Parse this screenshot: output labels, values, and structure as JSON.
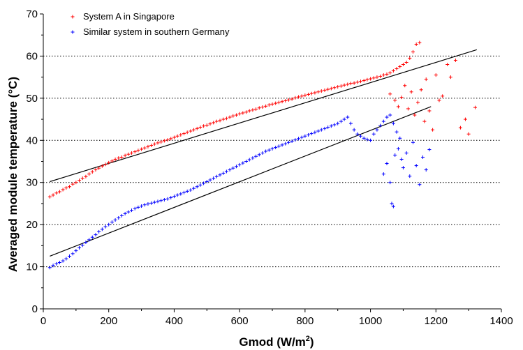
{
  "chart_data": {
    "type": "scatter",
    "xlabel": "Gmod (W/m",
    "xlabel_sup": "2",
    "xlabel_end": ")",
    "ylabel": "Averaged module temperature (°C)",
    "xlim": [
      0,
      1400
    ],
    "ylim": [
      0,
      70
    ],
    "x_ticks": [
      "0",
      "200",
      "400",
      "600",
      "800",
      "1000",
      "1200",
      "1400"
    ],
    "y_ticks": [
      "0",
      "10",
      "20",
      "30",
      "40",
      "50",
      "60",
      "70"
    ],
    "grid": "horizontal dotted",
    "legend_position": "top-left",
    "series": [
      {
        "name": "System A in Singapore",
        "color": "#ff0000",
        "marker": "plus",
        "fit_line": {
          "x": [
            20,
            1325
          ],
          "y": [
            30.2,
            61.5
          ]
        },
        "points": [
          [
            20,
            26.6
          ],
          [
            30,
            27.0
          ],
          [
            40,
            27.5
          ],
          [
            50,
            27.8
          ],
          [
            60,
            28.3
          ],
          [
            70,
            28.7
          ],
          [
            80,
            29.0
          ],
          [
            90,
            29.6
          ],
          [
            100,
            30.0
          ],
          [
            110,
            30.5
          ],
          [
            120,
            31.0
          ],
          [
            130,
            31.4
          ],
          [
            140,
            32.0
          ],
          [
            150,
            32.5
          ],
          [
            160,
            33.0
          ],
          [
            170,
            33.4
          ],
          [
            180,
            33.9
          ],
          [
            190,
            34.3
          ],
          [
            200,
            34.7
          ],
          [
            210,
            35.1
          ],
          [
            220,
            35.5
          ],
          [
            230,
            35.8
          ],
          [
            240,
            36.0
          ],
          [
            250,
            36.4
          ],
          [
            260,
            36.7
          ],
          [
            270,
            37.0
          ],
          [
            280,
            37.3
          ],
          [
            290,
            37.6
          ],
          [
            300,
            37.9
          ],
          [
            310,
            38.2
          ],
          [
            320,
            38.5
          ],
          [
            330,
            38.8
          ],
          [
            340,
            39.1
          ],
          [
            350,
            39.4
          ],
          [
            360,
            39.6
          ],
          [
            370,
            39.9
          ],
          [
            380,
            40.1
          ],
          [
            390,
            40.4
          ],
          [
            400,
            40.7
          ],
          [
            410,
            41.0
          ],
          [
            420,
            41.3
          ],
          [
            430,
            41.6
          ],
          [
            440,
            41.9
          ],
          [
            450,
            42.2
          ],
          [
            460,
            42.5
          ],
          [
            470,
            42.8
          ],
          [
            480,
            43.1
          ],
          [
            490,
            43.4
          ],
          [
            500,
            43.6
          ],
          [
            510,
            43.9
          ],
          [
            520,
            44.2
          ],
          [
            530,
            44.5
          ],
          [
            540,
            44.7
          ],
          [
            550,
            45.0
          ],
          [
            560,
            45.2
          ],
          [
            570,
            45.5
          ],
          [
            580,
            45.8
          ],
          [
            590,
            46.0
          ],
          [
            600,
            46.3
          ],
          [
            610,
            46.5
          ],
          [
            620,
            46.7
          ],
          [
            630,
            47.0
          ],
          [
            640,
            47.2
          ],
          [
            650,
            47.4
          ],
          [
            660,
            47.7
          ],
          [
            670,
            47.9
          ],
          [
            680,
            48.1
          ],
          [
            690,
            48.4
          ],
          [
            700,
            48.6
          ],
          [
            710,
            48.8
          ],
          [
            720,
            49.0
          ],
          [
            730,
            49.2
          ],
          [
            740,
            49.4
          ],
          [
            750,
            49.6
          ],
          [
            760,
            49.8
          ],
          [
            770,
            50.1
          ],
          [
            780,
            50.3
          ],
          [
            790,
            50.5
          ],
          [
            800,
            50.7
          ],
          [
            810,
            50.9
          ],
          [
            820,
            51.1
          ],
          [
            830,
            51.3
          ],
          [
            840,
            51.5
          ],
          [
            850,
            51.7
          ],
          [
            860,
            51.9
          ],
          [
            870,
            52.1
          ],
          [
            880,
            52.3
          ],
          [
            890,
            52.5
          ],
          [
            900,
            52.7
          ],
          [
            910,
            52.9
          ],
          [
            920,
            53.1
          ],
          [
            930,
            53.3
          ],
          [
            940,
            53.5
          ],
          [
            950,
            53.6
          ],
          [
            960,
            53.8
          ],
          [
            970,
            54.0
          ],
          [
            980,
            54.2
          ],
          [
            990,
            54.4
          ],
          [
            1000,
            54.6
          ],
          [
            1010,
            54.8
          ],
          [
            1020,
            55.0
          ],
          [
            1030,
            55.2
          ],
          [
            1040,
            55.5
          ],
          [
            1050,
            55.7
          ],
          [
            1060,
            56.0
          ],
          [
            1070,
            56.5
          ],
          [
            1080,
            57.0
          ],
          [
            1090,
            57.5
          ],
          [
            1100,
            58.0
          ],
          [
            1110,
            58.5
          ],
          [
            1120,
            59.5
          ],
          [
            1130,
            61.0
          ],
          [
            1140,
            62.8
          ],
          [
            1150,
            63.2
          ],
          [
            1060,
            51.0
          ],
          [
            1075,
            49.5
          ],
          [
            1085,
            48.0
          ],
          [
            1095,
            50.2
          ],
          [
            1105,
            53.0
          ],
          [
            1115,
            47.5
          ],
          [
            1125,
            51.5
          ],
          [
            1135,
            46.0
          ],
          [
            1145,
            49.0
          ],
          [
            1155,
            52.0
          ],
          [
            1165,
            44.5
          ],
          [
            1170,
            54.5
          ],
          [
            1180,
            47.0
          ],
          [
            1190,
            42.5
          ],
          [
            1200,
            55.5
          ],
          [
            1210,
            49.5
          ],
          [
            1220,
            50.5
          ],
          [
            1235,
            58.0
          ],
          [
            1245,
            55.0
          ],
          [
            1260,
            59.0
          ],
          [
            1275,
            43.0
          ],
          [
            1290,
            45.0
          ],
          [
            1300,
            41.5
          ],
          [
            1320,
            47.8
          ]
        ]
      },
      {
        "name": "Similar system in southern Germany",
        "color": "#0000ff",
        "marker": "plus",
        "fit_line": {
          "x": [
            20,
            1185
          ],
          "y": [
            12.5,
            48.0
          ]
        },
        "points": [
          [
            20,
            9.8
          ],
          [
            30,
            10.3
          ],
          [
            40,
            10.7
          ],
          [
            50,
            11.0
          ],
          [
            60,
            11.4
          ],
          [
            70,
            11.9
          ],
          [
            80,
            12.5
          ],
          [
            90,
            13.1
          ],
          [
            100,
            13.8
          ],
          [
            110,
            14.5
          ],
          [
            120,
            15.1
          ],
          [
            130,
            15.8
          ],
          [
            140,
            16.4
          ],
          [
            150,
            17.0
          ],
          [
            160,
            17.6
          ],
          [
            170,
            18.3
          ],
          [
            180,
            18.9
          ],
          [
            190,
            19.5
          ],
          [
            200,
            20.0
          ],
          [
            210,
            20.6
          ],
          [
            220,
            21.1
          ],
          [
            230,
            21.6
          ],
          [
            240,
            22.1
          ],
          [
            250,
            22.6
          ],
          [
            260,
            23.0
          ],
          [
            270,
            23.4
          ],
          [
            280,
            23.8
          ],
          [
            290,
            24.1
          ],
          [
            300,
            24.4
          ],
          [
            310,
            24.7
          ],
          [
            320,
            24.9
          ],
          [
            330,
            25.1
          ],
          [
            340,
            25.3
          ],
          [
            350,
            25.5
          ],
          [
            360,
            25.7
          ],
          [
            370,
            25.9
          ],
          [
            380,
            26.1
          ],
          [
            390,
            26.4
          ],
          [
            400,
            26.7
          ],
          [
            410,
            27.0
          ],
          [
            420,
            27.3
          ],
          [
            430,
            27.6
          ],
          [
            440,
            27.9
          ],
          [
            450,
            28.2
          ],
          [
            460,
            28.6
          ],
          [
            470,
            29.0
          ],
          [
            480,
            29.4
          ],
          [
            490,
            29.8
          ],
          [
            500,
            30.2
          ],
          [
            510,
            30.6
          ],
          [
            520,
            31.0
          ],
          [
            530,
            31.4
          ],
          [
            540,
            31.8
          ],
          [
            550,
            32.2
          ],
          [
            560,
            32.6
          ],
          [
            570,
            33.0
          ],
          [
            580,
            33.4
          ],
          [
            590,
            33.8
          ],
          [
            600,
            34.2
          ],
          [
            610,
            34.6
          ],
          [
            620,
            35.0
          ],
          [
            630,
            35.4
          ],
          [
            640,
            35.8
          ],
          [
            650,
            36.2
          ],
          [
            660,
            36.6
          ],
          [
            670,
            37.0
          ],
          [
            680,
            37.4
          ],
          [
            690,
            37.7
          ],
          [
            700,
            38.0
          ],
          [
            710,
            38.3
          ],
          [
            720,
            38.6
          ],
          [
            730,
            38.9
          ],
          [
            740,
            39.2
          ],
          [
            750,
            39.5
          ],
          [
            760,
            39.8
          ],
          [
            770,
            40.1
          ],
          [
            780,
            40.4
          ],
          [
            790,
            40.7
          ],
          [
            800,
            41.0
          ],
          [
            810,
            41.3
          ],
          [
            820,
            41.6
          ],
          [
            830,
            41.9
          ],
          [
            840,
            42.2
          ],
          [
            850,
            42.5
          ],
          [
            860,
            42.8
          ],
          [
            870,
            43.1
          ],
          [
            880,
            43.4
          ],
          [
            890,
            43.7
          ],
          [
            900,
            44.0
          ],
          [
            910,
            44.5
          ],
          [
            920,
            45.0
          ],
          [
            930,
            45.5
          ],
          [
            940,
            44.0
          ],
          [
            950,
            42.5
          ],
          [
            960,
            41.5
          ],
          [
            970,
            41.0
          ],
          [
            980,
            40.5
          ],
          [
            990,
            40.2
          ],
          [
            1000,
            40.0
          ],
          [
            1010,
            41.5
          ],
          [
            1020,
            42.5
          ],
          [
            1030,
            43.5
          ],
          [
            1040,
            44.5
          ],
          [
            1050,
            45.5
          ],
          [
            1060,
            46.0
          ],
          [
            1070,
            44.0
          ],
          [
            1080,
            42.0
          ],
          [
            1090,
            40.5
          ],
          [
            1040,
            32.0
          ],
          [
            1050,
            34.5
          ],
          [
            1060,
            30.0
          ],
          [
            1065,
            25.0
          ],
          [
            1070,
            24.3
          ],
          [
            1075,
            36.5
          ],
          [
            1085,
            38.0
          ],
          [
            1095,
            35.5
          ],
          [
            1100,
            33.5
          ],
          [
            1110,
            37.0
          ],
          [
            1120,
            31.5
          ],
          [
            1130,
            39.5
          ],
          [
            1140,
            34.0
          ],
          [
            1150,
            29.5
          ],
          [
            1160,
            36.0
          ],
          [
            1170,
            33.0
          ],
          [
            1180,
            37.8
          ]
        ]
      }
    ]
  }
}
